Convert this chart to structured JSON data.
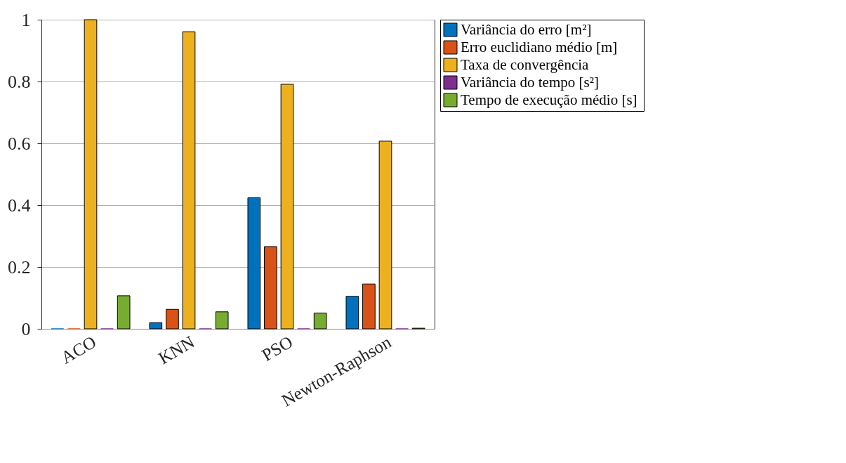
{
  "chart_data": {
    "type": "bar",
    "categories": [
      "ACO",
      "KNN",
      "PSO",
      "Newton-Raphson"
    ],
    "series": [
      {
        "name": "Variância do erro    [m²]",
        "color": "#0072bd",
        "values": [
          0,
          0.02,
          0.424,
          0.105
        ]
      },
      {
        "name": "Erro euclidiano médio    [m]",
        "color": "#d95319",
        "values": [
          0,
          0.063,
          0.266,
          0.145
        ]
      },
      {
        "name": "Taxa de convergência",
        "color": "#edb120",
        "values": [
          1,
          0.961,
          0.791,
          0.607
        ]
      },
      {
        "name": "Variância do tempo   [s²]",
        "color": "#7e2f8e",
        "values": [
          0,
          0,
          0,
          0
        ]
      },
      {
        "name": "Tempo de execução médio  [s]",
        "color": "#77ac30",
        "values": [
          0.107,
          0.055,
          0.051,
          0.002
        ]
      }
    ],
    "ylim": [
      0,
      1
    ],
    "yticks": [
      0,
      0.2,
      0.4,
      0.6,
      0.8,
      1
    ],
    "grid": "y",
    "legend": "top right"
  }
}
